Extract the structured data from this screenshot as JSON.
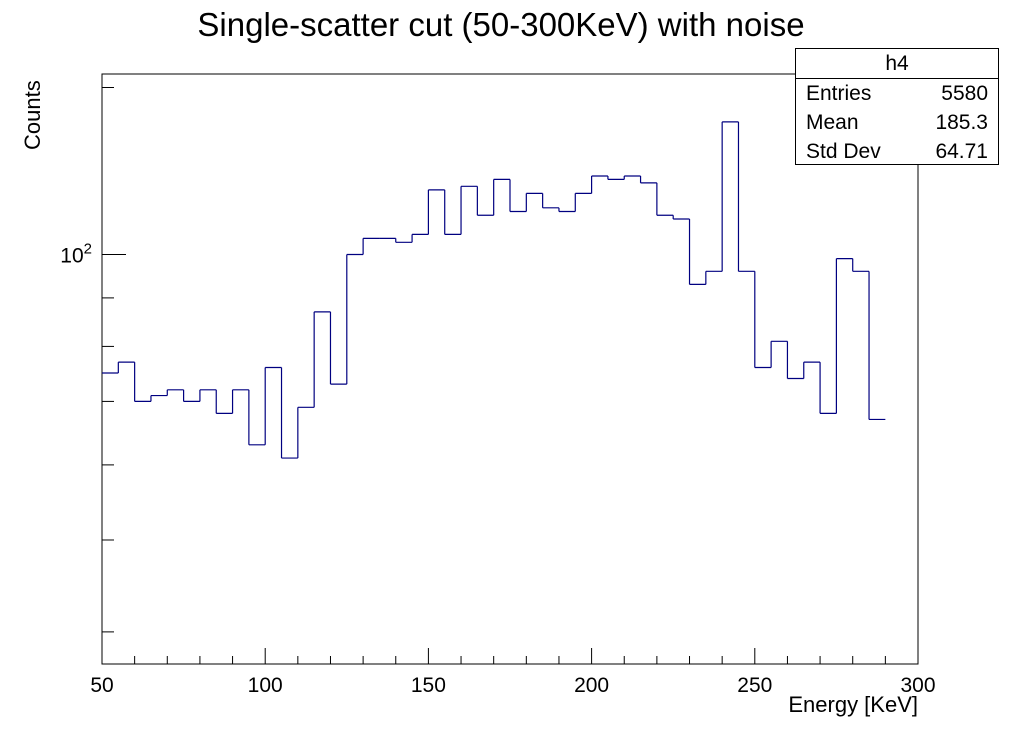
{
  "chart_data": {
    "type": "bar",
    "style": "step-histogram",
    "title": "Single-scatter cut (50-300KeV) with noise",
    "xlabel": "Energy [KeV]",
    "ylabel": "Counts",
    "log_y": true,
    "xlim": [
      50,
      300
    ],
    "ylim": [
      37,
      155
    ],
    "x_ticks": [
      50,
      100,
      150,
      200,
      250,
      300
    ],
    "y_tick_label": {
      "base": "10",
      "exponent": "2",
      "value": 100
    },
    "bin_width": 5,
    "bin_edges_start": 50,
    "values": [
      75,
      77,
      70,
      71,
      72,
      70,
      72,
      68,
      72,
      63,
      76,
      61,
      69,
      87,
      73,
      100,
      104,
      104,
      103,
      105,
      117,
      105,
      118,
      110,
      120,
      111,
      116,
      112,
      111,
      116,
      121,
      120,
      121,
      119,
      110,
      109,
      93,
      96,
      138,
      96,
      76,
      81,
      74,
      77,
      68,
      99,
      96,
      67
    ],
    "line_color": "#000080",
    "grid": false,
    "stats_box": {
      "name": "h4",
      "rows": [
        {
          "label": "Entries",
          "value": "5580"
        },
        {
          "label": "Mean",
          "value": "185.3"
        },
        {
          "label": "Std Dev",
          "value": "64.71"
        }
      ]
    }
  }
}
